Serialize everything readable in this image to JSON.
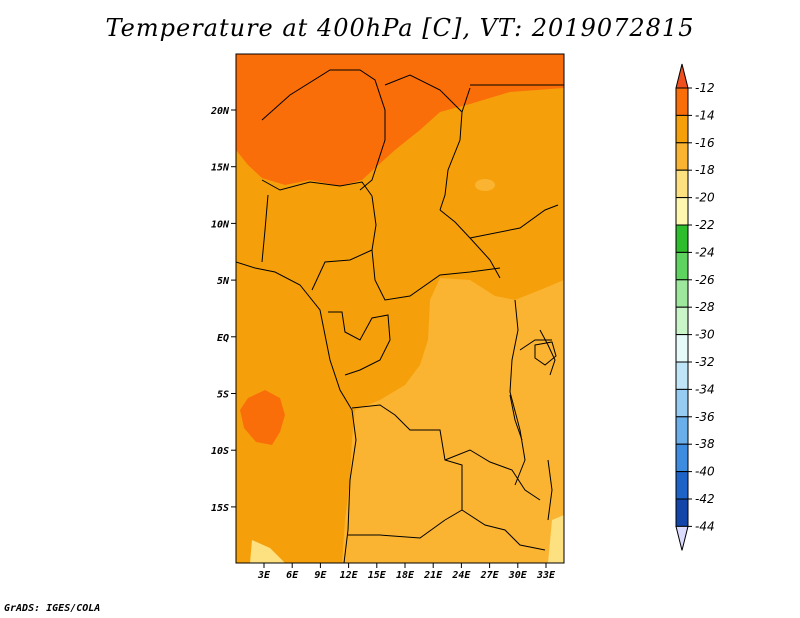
{
  "title": "Temperature at 400hPa [C], VT: 2019072815",
  "credit": "GrADS: IGES/COLA",
  "map": {
    "lat_ticks": [
      "20N",
      "15N",
      "10N",
      "5N",
      "EQ",
      "5S",
      "10S",
      "15S"
    ],
    "lon_ticks": [
      "3E",
      "6E",
      "9E",
      "12E",
      "15E",
      "18E",
      "21E",
      "24E",
      "27E",
      "30E",
      "33E"
    ]
  },
  "colorbar": {
    "labels": [
      "-12",
      "-14",
      "-16",
      "-18",
      "-20",
      "-22",
      "-24",
      "-26",
      "-28",
      "-30",
      "-32",
      "-34",
      "-36",
      "-38",
      "-40",
      "-42",
      "-44"
    ],
    "colors": [
      "#f0501e",
      "#fa6e0a",
      "#f5a00a",
      "#fab432",
      "#fde080",
      "#fff7b0",
      "#2dbd2d",
      "#5fd35f",
      "#9ee89e",
      "#c9f5c9",
      "#e6fafa",
      "#c0e4f8",
      "#96ccf2",
      "#6aaeea",
      "#3e8ce0",
      "#1e64c8",
      "#1446aa",
      "#0f2a88",
      "#0a0a60",
      "#dcdcff"
    ]
  }
}
